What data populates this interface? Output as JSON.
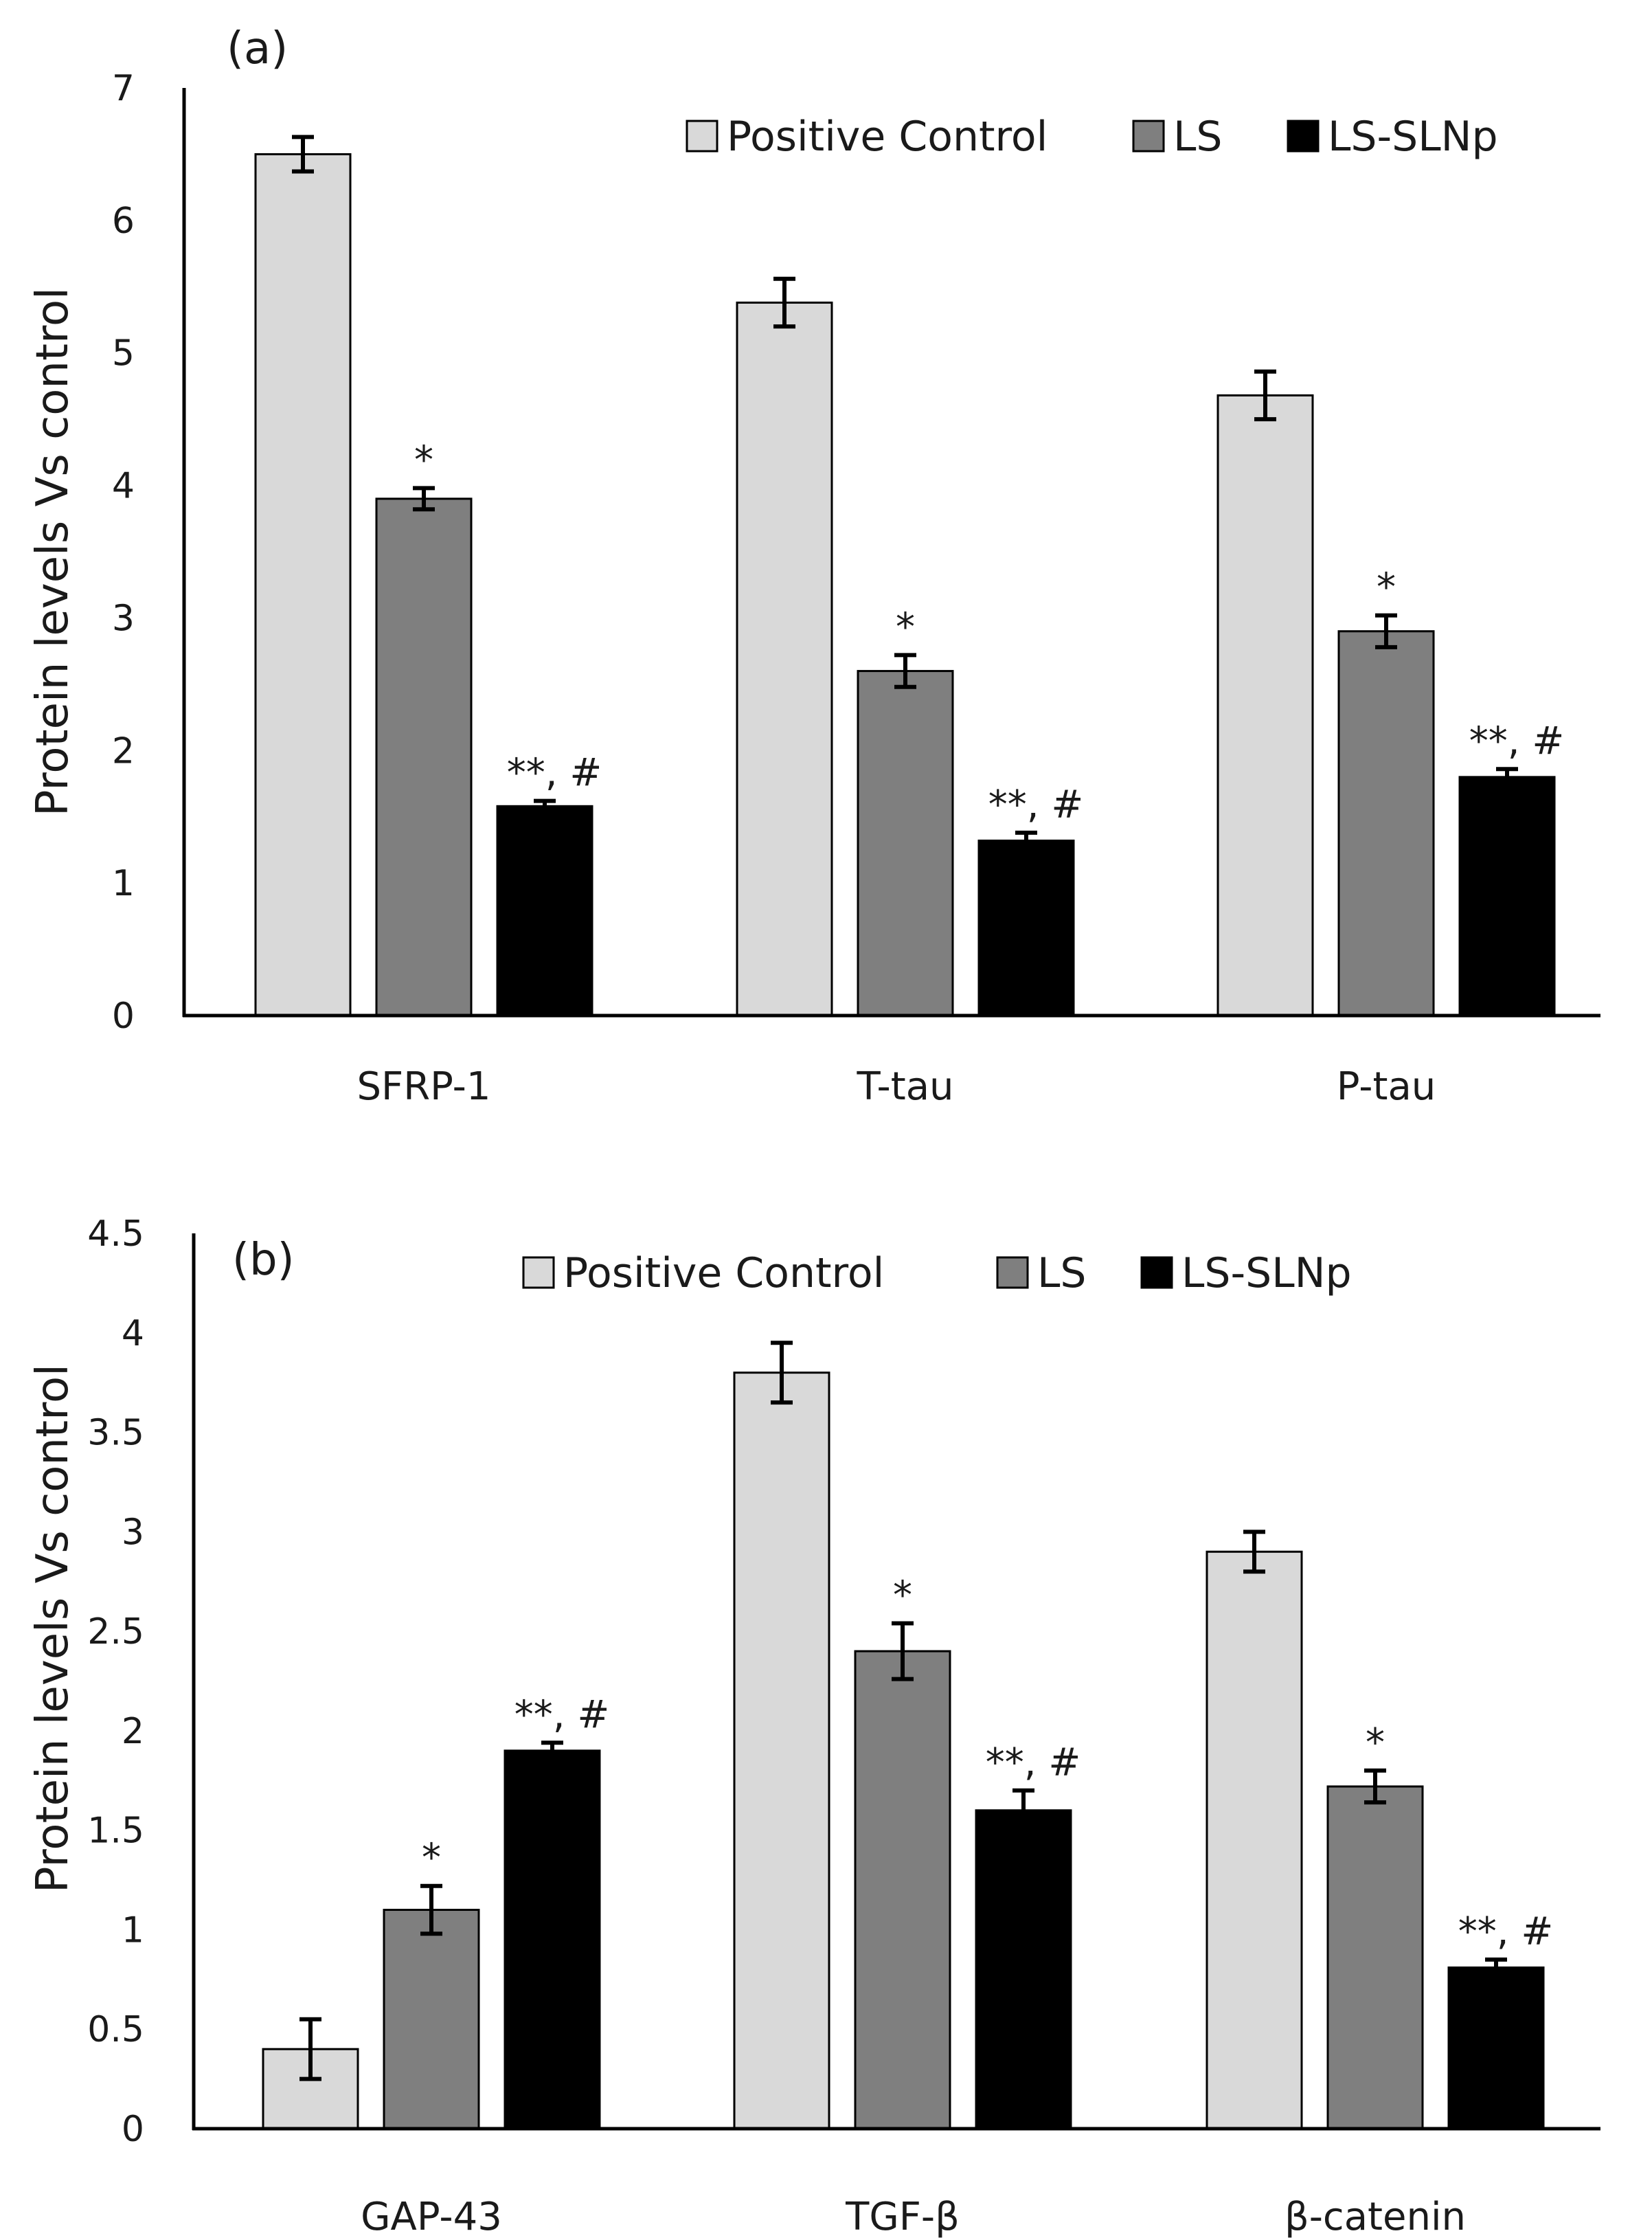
{
  "chart_data": [
    {
      "type": "bar",
      "panel_label": "(a)",
      "ylabel": "Protein levels Vs control",
      "xlabel": "",
      "ylim": [
        0,
        7
      ],
      "yticks": [
        0,
        1,
        2,
        3,
        4,
        5,
        6,
        7
      ],
      "ytick_labels": [
        "0",
        "1",
        "2",
        "3",
        "4",
        "5",
        "6",
        "7"
      ],
      "categories": [
        "SFRP-1",
        "T-tau",
        "P-tau"
      ],
      "legend_position": "top-right",
      "series": [
        {
          "name": "Positive Control",
          "color": "#d9d9d9",
          "values": [
            6.5,
            5.38,
            4.68
          ],
          "errors": [
            0.13,
            0.18,
            0.18
          ],
          "annotations": [
            "",
            "",
            ""
          ]
        },
        {
          "name": "LS",
          "color": "#7f7f7f",
          "values": [
            3.9,
            2.6,
            2.9
          ],
          "errors": [
            0.08,
            0.12,
            0.12
          ],
          "annotations": [
            "*",
            "*",
            "*"
          ]
        },
        {
          "name": "LS-SLNp",
          "color": "#000000",
          "values": [
            1.58,
            1.32,
            1.8
          ],
          "errors": [
            0.04,
            0.06,
            0.06
          ],
          "annotations": [
            "**, #",
            "**, #",
            "**, #"
          ]
        }
      ]
    },
    {
      "type": "bar",
      "panel_label": "(b)",
      "ylabel": "Protein levels Vs control",
      "xlabel": "",
      "ylim": [
        0,
        4.5
      ],
      "yticks": [
        0,
        0.5,
        1,
        1.5,
        2,
        2.5,
        3,
        3.5,
        4,
        4.5
      ],
      "ytick_labels": [
        "0",
        "0.5",
        "1",
        "1.5",
        "2",
        "2.5",
        "3",
        "3.5",
        "4",
        "4.5"
      ],
      "categories": [
        "GAP-43",
        "TGF-β",
        "β-catenin"
      ],
      "legend_position": "top-center",
      "series": [
        {
          "name": "Positive Control",
          "color": "#d9d9d9",
          "values": [
            0.4,
            3.8,
            2.9
          ],
          "errors": [
            0.15,
            0.15,
            0.1
          ],
          "annotations": [
            "",
            "",
            ""
          ]
        },
        {
          "name": "LS",
          "color": "#7f7f7f",
          "values": [
            1.1,
            2.4,
            1.72
          ],
          "errors": [
            0.12,
            0.14,
            0.08
          ],
          "annotations": [
            "*",
            "*",
            "*"
          ]
        },
        {
          "name": "LS-SLNp",
          "color": "#000000",
          "values": [
            1.9,
            1.6,
            0.81
          ],
          "errors": [
            0.04,
            0.1,
            0.04
          ],
          "annotations": [
            "**, #",
            "**, #",
            "**, #"
          ]
        }
      ]
    }
  ]
}
